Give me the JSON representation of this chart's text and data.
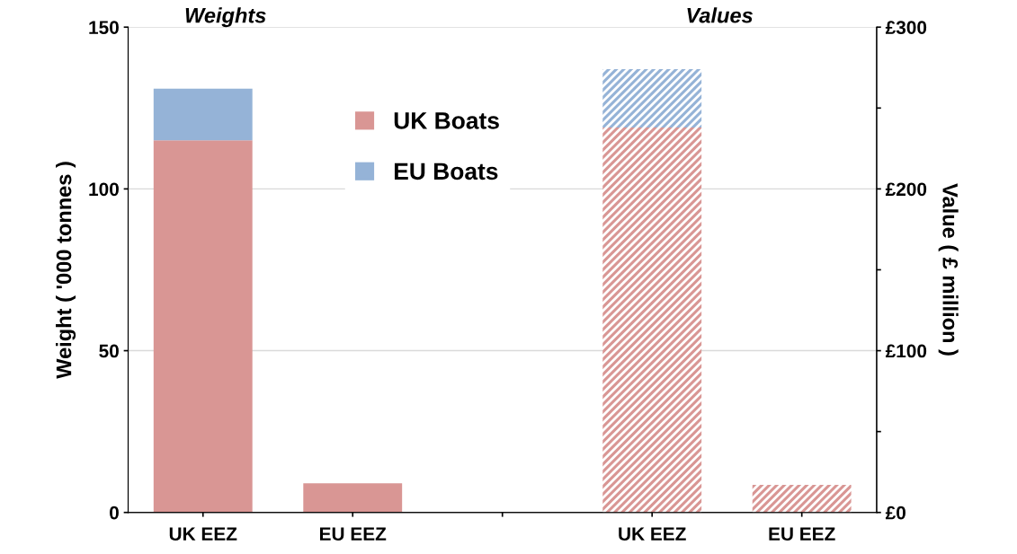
{
  "chart_data": {
    "type": "bar",
    "stacked": true,
    "categories": [
      "UK EEZ",
      "EU EEZ",
      null,
      "UK EEZ",
      "EU EEZ"
    ],
    "series": [
      {
        "name": "UK Boats",
        "color": "#d99694",
        "values": [
          115,
          9,
          null,
          null,
          null
        ]
      },
      {
        "name": "EU Boats",
        "color": "#95b3d7",
        "values": [
          16,
          null,
          null,
          null,
          null
        ]
      },
      {
        "color": "#d99694",
        "axis": "y2",
        "values": [
          null,
          null,
          null,
          238,
          17
        ]
      },
      {
        "color": "#95b3d7",
        "axis": "y2",
        "values": [
          null,
          null,
          null,
          36,
          null
        ]
      }
    ],
    "ylabel": "Weight ( '000 tonnes )",
    "y2label": "Value ( £ million )",
    "ylim": [
      0,
      150
    ],
    "yticks": [
      0,
      50,
      100,
      150
    ],
    "y2lim": [
      0,
      300
    ],
    "y2ticks": [
      {
        "value": 0,
        "label": "£0"
      },
      {
        "value": 50,
        "label": null
      },
      {
        "value": 100,
        "label": "£100"
      },
      {
        "value": 150,
        "label": null
      },
      {
        "value": 200,
        "label": "£200"
      },
      {
        "value": 250,
        "label": null
      },
      {
        "value": 300,
        "label": "£300"
      }
    ],
    "annotations": [
      "Weights",
      "Values"
    ],
    "grid": "y",
    "legend": "top"
  }
}
